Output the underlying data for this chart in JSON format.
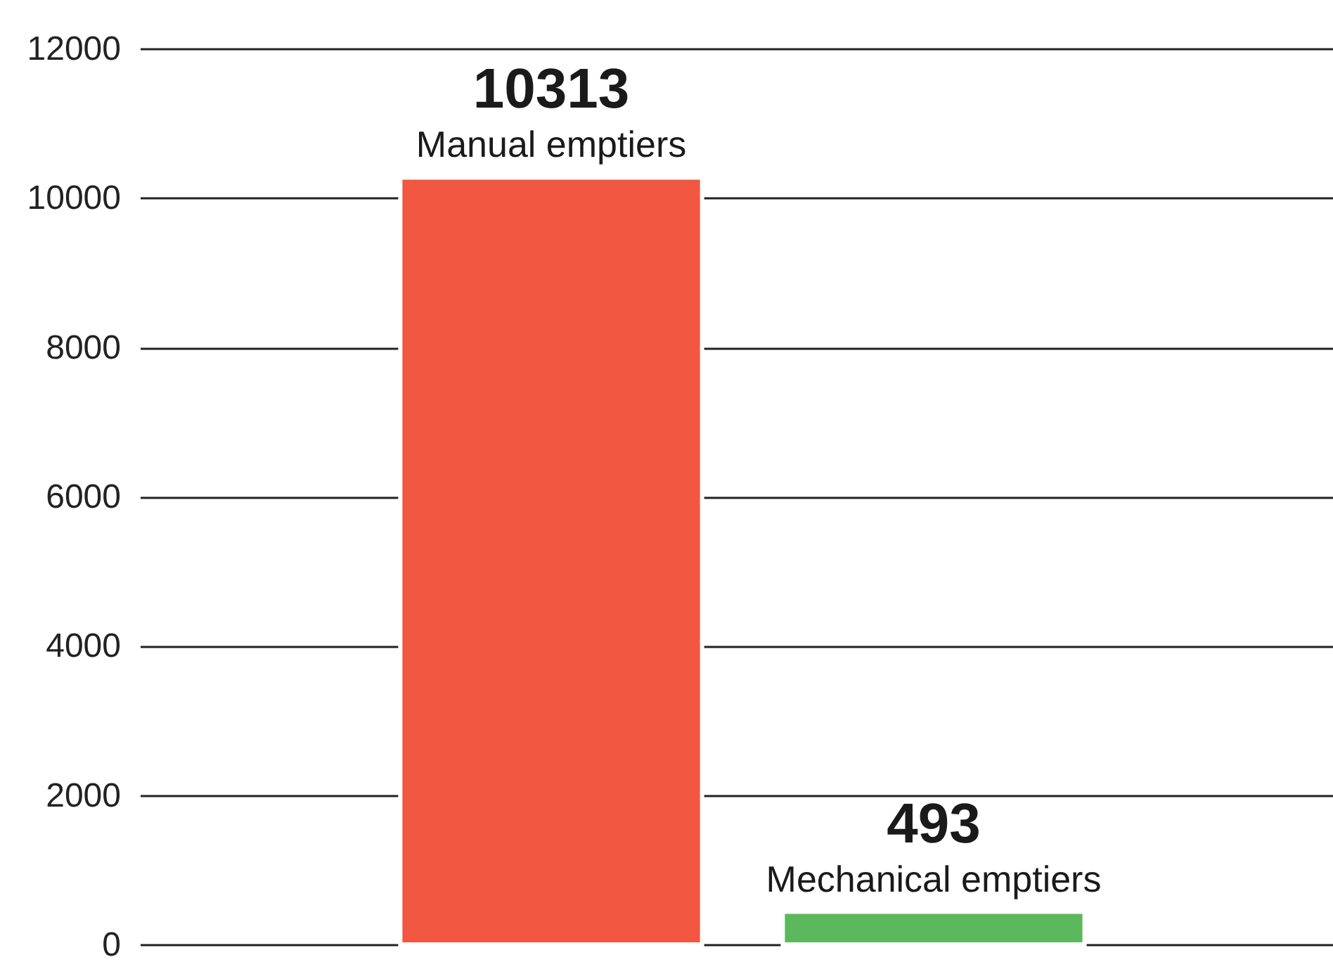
{
  "chart_data": {
    "type": "bar",
    "categories": [
      "Manual emptiers",
      "Mechanical emptiers"
    ],
    "values": [
      10313,
      493
    ],
    "colors": [
      "#f05640",
      "#5cb85c"
    ],
    "ylim": [
      0,
      12000
    ],
    "yticks": [
      0,
      2000,
      4000,
      6000,
      8000,
      10000,
      12000
    ],
    "grid": "y",
    "data_labels": true,
    "tick_labels": "y"
  }
}
